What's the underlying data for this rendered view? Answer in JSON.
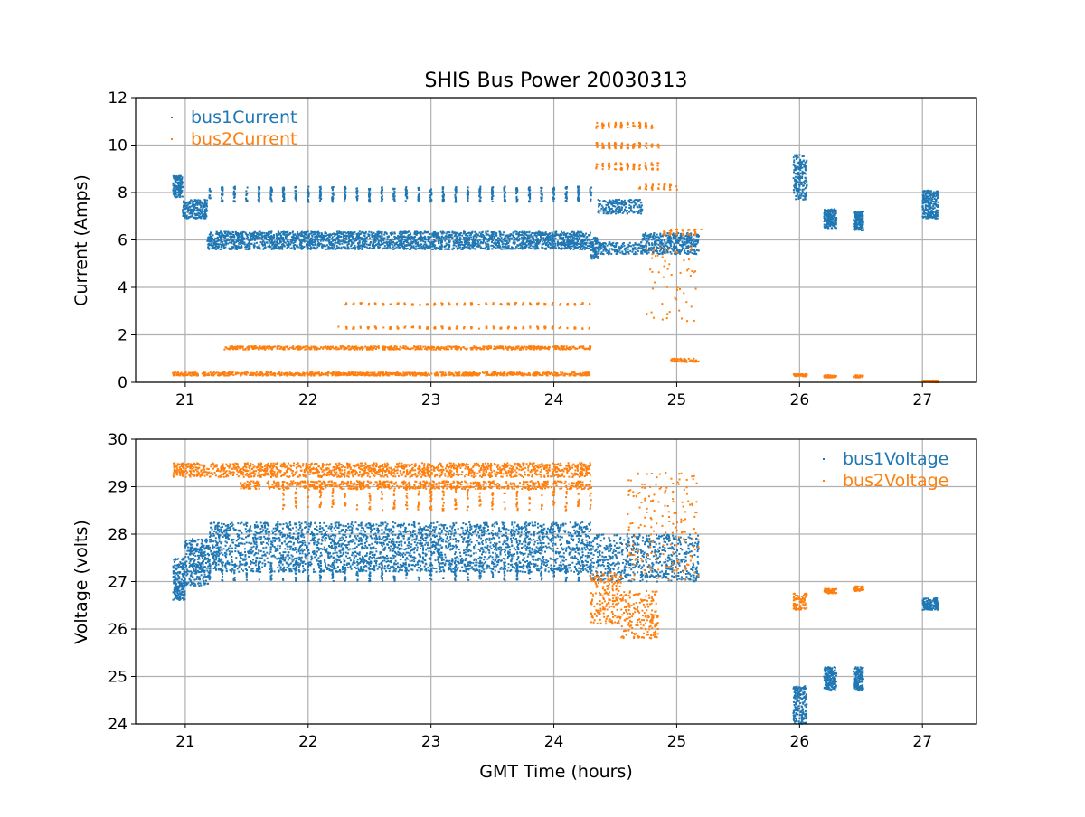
{
  "chart_data": [
    {
      "type": "scatter",
      "title": "SHIS Bus Power 20030313",
      "xlabel": "",
      "ylabel": "Current (Amps)",
      "xlim": [
        20.596,
        27.44
      ],
      "ylim": [
        0,
        12
      ],
      "xticks": [
        21,
        22,
        23,
        24,
        25,
        26,
        27
      ],
      "yticks": [
        0,
        2,
        4,
        6,
        8,
        10,
        12
      ],
      "grid": true,
      "legend_position": "top-left",
      "series": [
        {
          "name": "bus1Current",
          "color": "#1f77b4",
          "clusters": [
            {
              "x": [
                20.9,
                20.98
              ],
              "y": [
                7.8,
                8.7
              ],
              "n": 160
            },
            {
              "x": [
                20.98,
                21.18
              ],
              "y": [
                6.9,
                7.7
              ],
              "n": 220
            },
            {
              "x": [
                21.18,
                24.3
              ],
              "y": [
                5.6,
                6.35
              ],
              "n": 2600
            },
            {
              "x": [
                21.2,
                24.3
              ],
              "y": [
                7.6,
                8.25
              ],
              "n": 700,
              "step": 0.1
            },
            {
              "x": [
                24.3,
                24.36
              ],
              "y": [
                5.2,
                6.1
              ],
              "n": 80
            },
            {
              "x": [
                24.36,
                24.72
              ],
              "y": [
                5.4,
                5.9
              ],
              "n": 160
            },
            {
              "x": [
                24.36,
                24.72
              ],
              "y": [
                7.1,
                7.7
              ],
              "n": 200
            },
            {
              "x": [
                24.72,
                25.18
              ],
              "y": [
                5.4,
                6.3
              ],
              "n": 400
            },
            {
              "x": [
                25.95,
                26.06
              ],
              "y": [
                7.7,
                9.6
              ],
              "n": 200
            },
            {
              "x": [
                26.2,
                26.3
              ],
              "y": [
                6.5,
                7.3
              ],
              "n": 180
            },
            {
              "x": [
                26.44,
                26.52
              ],
              "y": [
                6.4,
                7.2
              ],
              "n": 160
            },
            {
              "x": [
                27.0,
                27.13
              ],
              "y": [
                6.9,
                8.1
              ],
              "n": 220
            }
          ]
        },
        {
          "name": "bus2Current",
          "color": "#ff7f0e",
          "clusters": [
            {
              "x": [
                20.9,
                24.3
              ],
              "y": [
                0.28,
                0.42
              ],
              "n": 900
            },
            {
              "x": [
                21.32,
                24.3
              ],
              "y": [
                1.38,
                1.52
              ],
              "n": 700
            },
            {
              "x": [
                22.25,
                24.3
              ],
              "y": [
                2.25,
                2.35
              ],
              "n": 160,
              "step": 0.06
            },
            {
              "x": [
                22.25,
                24.3
              ],
              "y": [
                3.25,
                3.35
              ],
              "n": 160,
              "step": 0.06
            },
            {
              "x": [
                24.35,
                24.8
              ],
              "y": [
                10.7,
                10.95
              ],
              "n": 90,
              "step": 0.05
            },
            {
              "x": [
                24.35,
                24.85
              ],
              "y": [
                9.85,
                10.1
              ],
              "n": 100,
              "step": 0.05
            },
            {
              "x": [
                24.35,
                24.85
              ],
              "y": [
                8.95,
                9.25
              ],
              "n": 100,
              "step": 0.05
            },
            {
              "x": [
                24.7,
                25.0
              ],
              "y": [
                8.1,
                8.35
              ],
              "n": 40,
              "step": 0.05
            },
            {
              "x": [
                24.9,
                25.18
              ],
              "y": [
                6.2,
                6.45
              ],
              "n": 50,
              "step": 0.05
            },
            {
              "x": [
                24.75,
                25.18
              ],
              "y": [
                2.5,
                5.7
              ],
              "n": 60
            },
            {
              "x": [
                24.95,
                25.18
              ],
              "y": [
                0.85,
                1.0
              ],
              "n": 60
            },
            {
              "x": [
                25.95,
                26.06
              ],
              "y": [
                0.25,
                0.35
              ],
              "n": 60
            },
            {
              "x": [
                26.2,
                26.3
              ],
              "y": [
                0.2,
                0.3
              ],
              "n": 60
            },
            {
              "x": [
                26.44,
                26.52
              ],
              "y": [
                0.2,
                0.3
              ],
              "n": 50
            },
            {
              "x": [
                27.0,
                27.13
              ],
              "y": [
                0.0,
                0.08
              ],
              "n": 60
            }
          ]
        }
      ]
    },
    {
      "type": "scatter",
      "title": "",
      "xlabel": "GMT Time (hours)",
      "ylabel": "Voltage (volts)",
      "xlim": [
        20.596,
        27.44
      ],
      "ylim": [
        24,
        30
      ],
      "xticks": [
        21,
        22,
        23,
        24,
        25,
        26,
        27
      ],
      "yticks": [
        24,
        25,
        26,
        27,
        28,
        29,
        30
      ],
      "grid": true,
      "legend_position": "top-right",
      "series": [
        {
          "name": "bus1Voltage",
          "color": "#1f77b4",
          "clusters": [
            {
              "x": [
                20.9,
                21.0
              ],
              "y": [
                26.6,
                27.5
              ],
              "n": 200
            },
            {
              "x": [
                21.0,
                21.2
              ],
              "y": [
                26.9,
                27.9
              ],
              "n": 300
            },
            {
              "x": [
                21.2,
                24.3
              ],
              "y": [
                27.2,
                28.25
              ],
              "n": 3000
            },
            {
              "x": [
                21.2,
                24.3
              ],
              "y": [
                27.0,
                27.4
              ],
              "n": 400,
              "step": 0.1
            },
            {
              "x": [
                24.3,
                24.7
              ],
              "y": [
                27.0,
                28.0
              ],
              "n": 300
            },
            {
              "x": [
                24.7,
                25.18
              ],
              "y": [
                27.0,
                28.0
              ],
              "n": 350
            },
            {
              "x": [
                25.95,
                26.06
              ],
              "y": [
                24.0,
                24.8
              ],
              "n": 180
            },
            {
              "x": [
                26.2,
                26.3
              ],
              "y": [
                24.7,
                25.2
              ],
              "n": 180
            },
            {
              "x": [
                26.44,
                26.52
              ],
              "y": [
                24.7,
                25.2
              ],
              "n": 160
            },
            {
              "x": [
                27.0,
                27.13
              ],
              "y": [
                26.4,
                26.65
              ],
              "n": 150
            }
          ]
        },
        {
          "name": "bus2Voltage",
          "color": "#ff7f0e",
          "clusters": [
            {
              "x": [
                20.9,
                24.3
              ],
              "y": [
                29.2,
                29.5
              ],
              "n": 1500
            },
            {
              "x": [
                21.45,
                24.3
              ],
              "y": [
                28.95,
                29.12
              ],
              "n": 700
            },
            {
              "x": [
                21.8,
                24.3
              ],
              "y": [
                28.5,
                29.0
              ],
              "n": 300,
              "step": 0.1
            },
            {
              "x": [
                24.3,
                24.55
              ],
              "y": [
                26.1,
                27.2
              ],
              "n": 200
            },
            {
              "x": [
                24.55,
                24.85
              ],
              "y": [
                25.8,
                26.8
              ],
              "n": 200
            },
            {
              "x": [
                24.6,
                25.18
              ],
              "y": [
                27.0,
                29.3
              ],
              "n": 180
            },
            {
              "x": [
                25.95,
                26.06
              ],
              "y": [
                26.4,
                26.75
              ],
              "n": 80
            },
            {
              "x": [
                26.2,
                26.3
              ],
              "y": [
                26.75,
                26.85
              ],
              "n": 60
            },
            {
              "x": [
                26.44,
                26.52
              ],
              "y": [
                26.8,
                26.9
              ],
              "n": 50
            }
          ]
        }
      ]
    }
  ]
}
